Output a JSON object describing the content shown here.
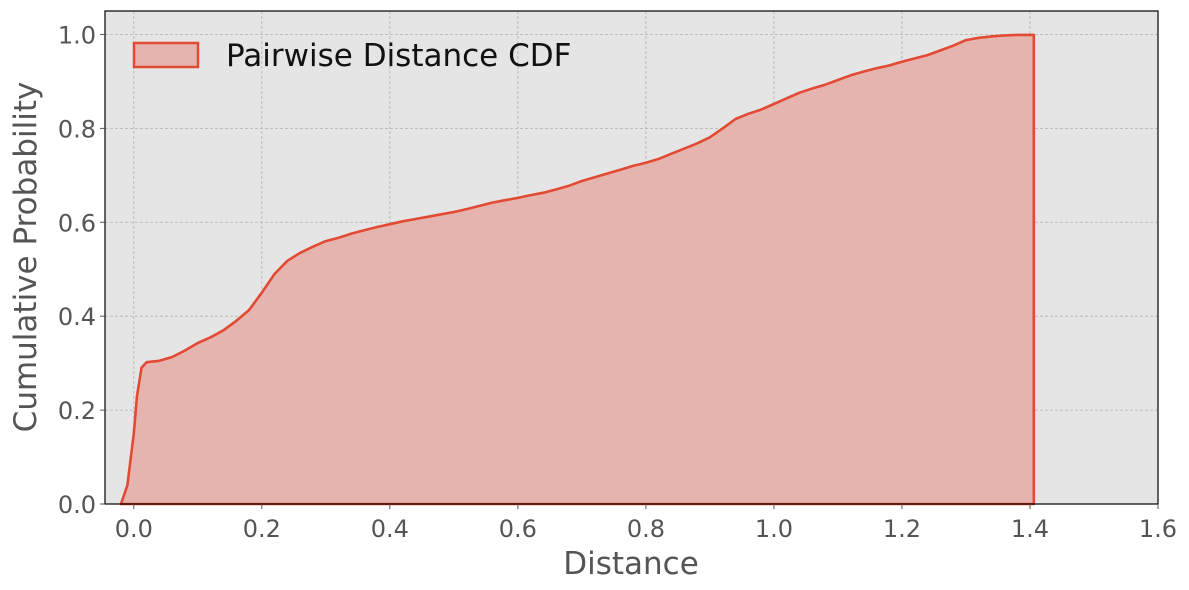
{
  "chart_data": {
    "type": "area",
    "xlabel": "Distance",
    "ylabel": "Cumulative Probability",
    "xlim": [
      -0.045,
      1.6
    ],
    "ylim": [
      0.0,
      1.05
    ],
    "xticks": [
      "0.0",
      "0.2",
      "0.4",
      "0.6",
      "0.8",
      "1.0",
      "1.2",
      "1.4",
      "1.6"
    ],
    "yticks": [
      "0.0",
      "0.2",
      "0.4",
      "0.6",
      "0.8",
      "1.0"
    ],
    "grid": true,
    "legend_position": "upper-left",
    "series": [
      {
        "name": "Pairwise Distance CDF",
        "line_color": "#e24a33",
        "fill_color": "#e5b4af",
        "x": [
          -0.02,
          -0.01,
          0.0,
          0.005,
          0.012,
          0.02,
          0.04,
          0.06,
          0.08,
          0.1,
          0.12,
          0.14,
          0.16,
          0.18,
          0.2,
          0.22,
          0.24,
          0.26,
          0.28,
          0.3,
          0.32,
          0.34,
          0.36,
          0.38,
          0.4,
          0.42,
          0.44,
          0.46,
          0.48,
          0.5,
          0.52,
          0.54,
          0.56,
          0.58,
          0.6,
          0.62,
          0.64,
          0.66,
          0.68,
          0.7,
          0.72,
          0.74,
          0.76,
          0.78,
          0.8,
          0.82,
          0.84,
          0.86,
          0.88,
          0.9,
          0.92,
          0.94,
          0.96,
          0.98,
          1.0,
          1.02,
          1.04,
          1.06,
          1.08,
          1.1,
          1.12,
          1.14,
          1.16,
          1.18,
          1.2,
          1.22,
          1.24,
          1.26,
          1.28,
          1.3,
          1.32,
          1.34,
          1.36,
          1.38,
          1.4,
          1.406
        ],
        "y": [
          0.0,
          0.04,
          0.15,
          0.23,
          0.29,
          0.302,
          0.305,
          0.313,
          0.327,
          0.343,
          0.355,
          0.37,
          0.39,
          0.413,
          0.45,
          0.49,
          0.518,
          0.535,
          0.548,
          0.56,
          0.567,
          0.576,
          0.583,
          0.59,
          0.596,
          0.602,
          0.607,
          0.612,
          0.617,
          0.622,
          0.628,
          0.635,
          0.642,
          0.647,
          0.652,
          0.658,
          0.663,
          0.67,
          0.678,
          0.688,
          0.696,
          0.704,
          0.712,
          0.72,
          0.727,
          0.735,
          0.746,
          0.757,
          0.768,
          0.781,
          0.8,
          0.82,
          0.831,
          0.84,
          0.852,
          0.864,
          0.876,
          0.885,
          0.893,
          0.903,
          0.913,
          0.921,
          0.928,
          0.934,
          0.942,
          0.949,
          0.956,
          0.966,
          0.976,
          0.988,
          0.993,
          0.996,
          0.998,
          0.999,
          0.999,
          0.999
        ]
      }
    ]
  }
}
